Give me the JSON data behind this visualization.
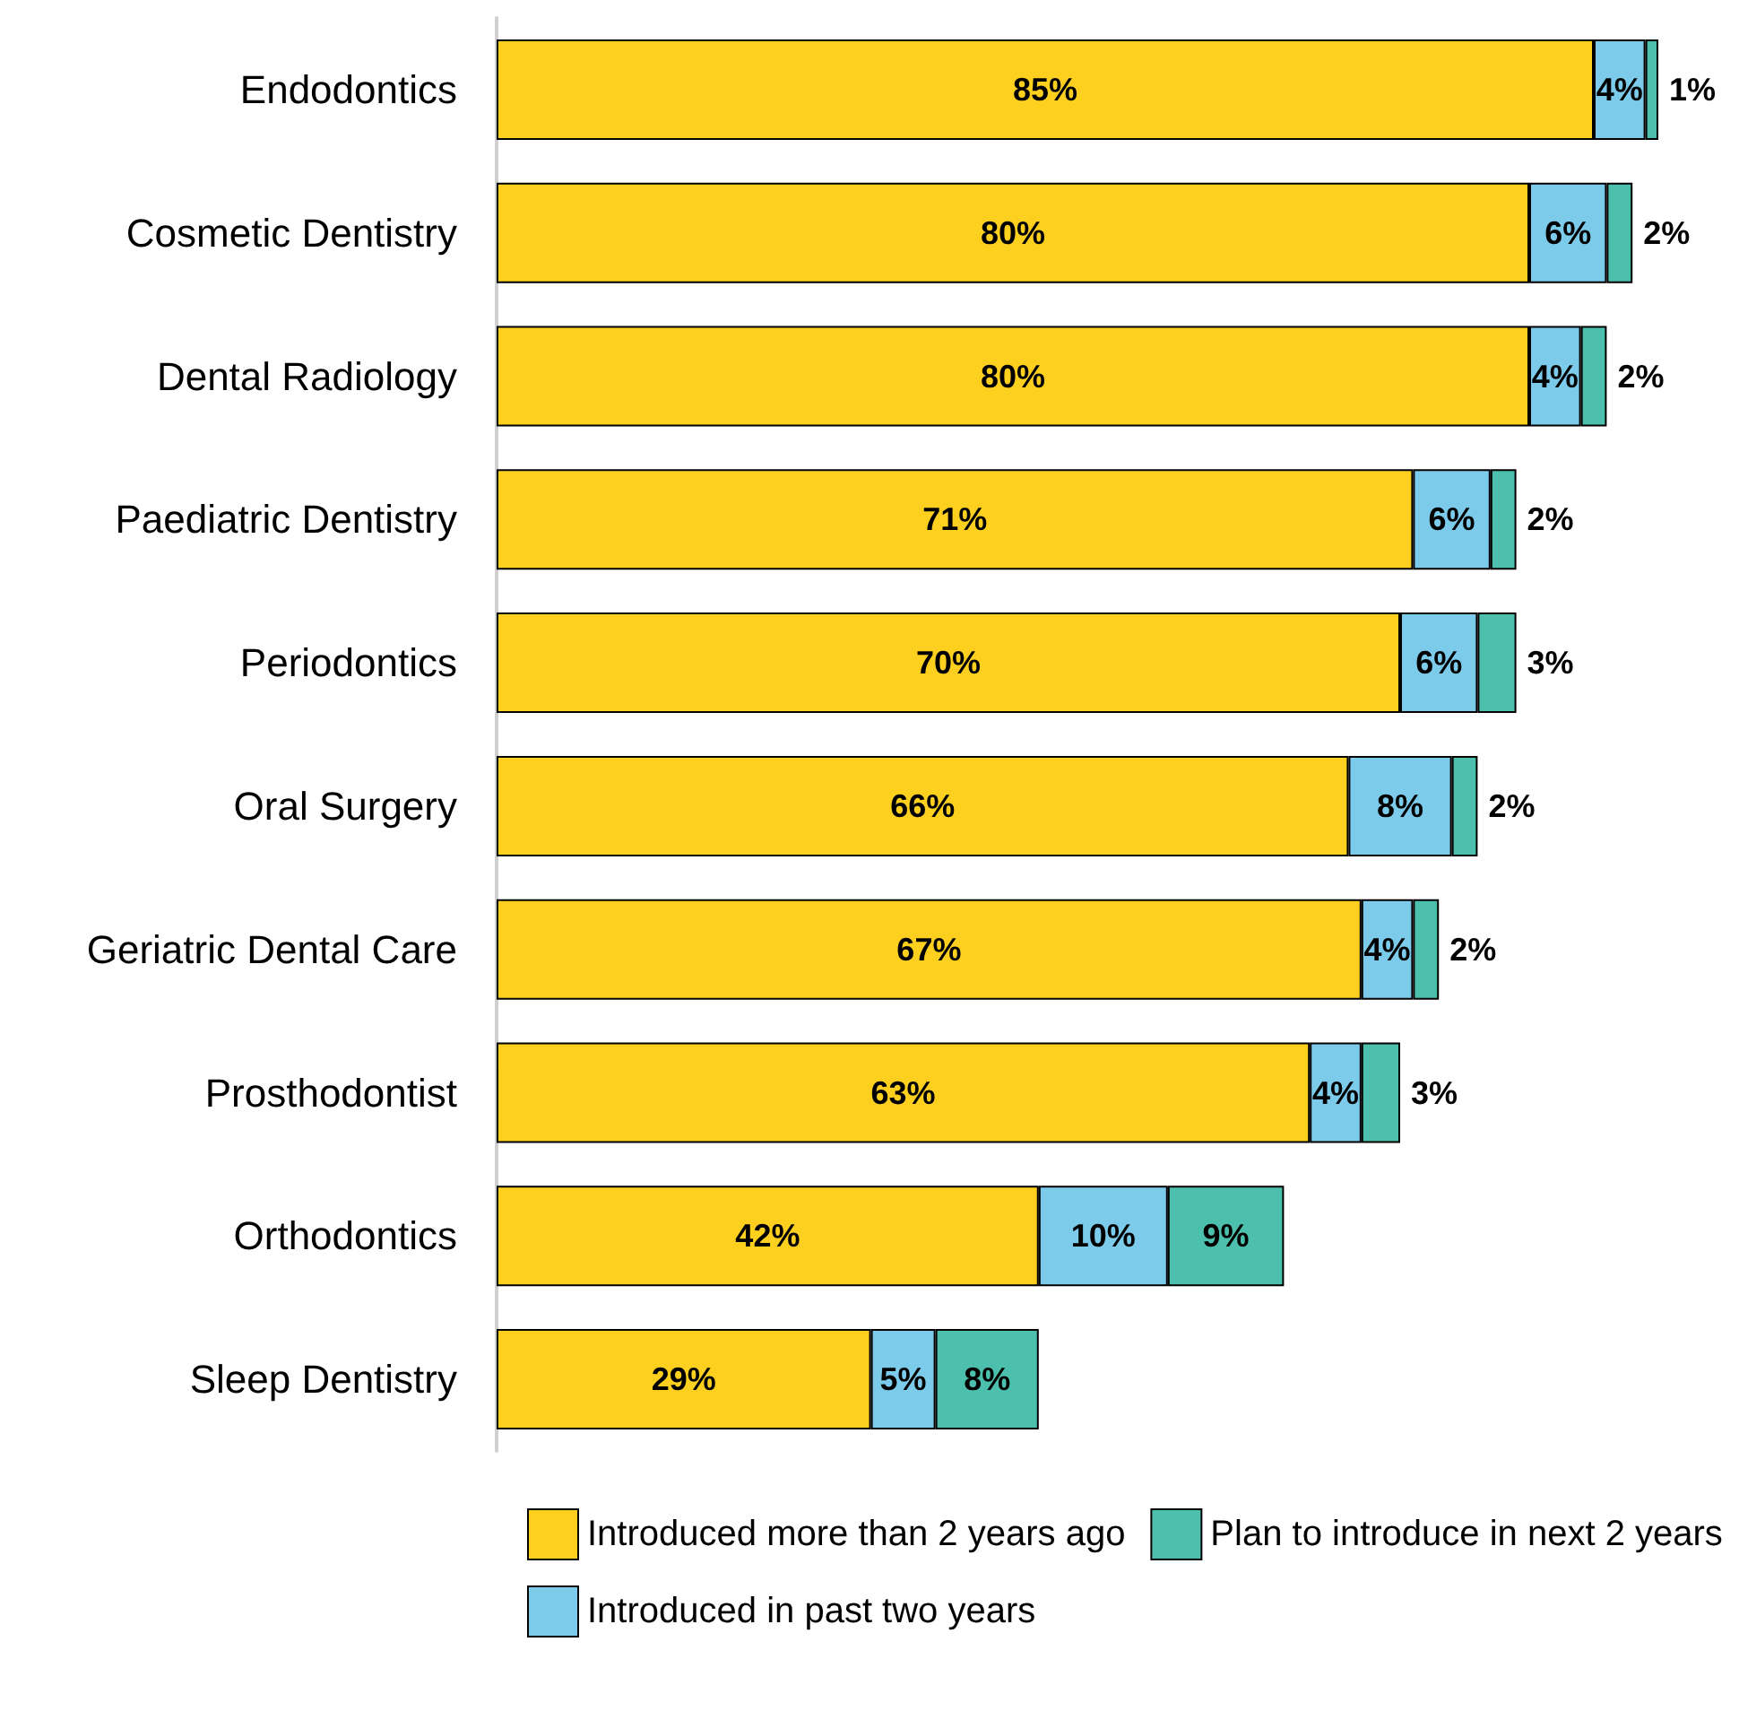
{
  "chart_data": {
    "type": "bar",
    "orientation": "horizontal",
    "stacked": true,
    "legend": "bottom",
    "categories": [
      "Endodontics",
      "Cosmetic Dentistry",
      "Dental Radiology",
      "Paediatric Dentistry",
      "Periodontics",
      "Oral Surgery",
      "Geriatric Dental Care",
      "Prosthodontist",
      "Orthodontics",
      "Sleep Dentistry"
    ],
    "series": [
      {
        "name": "Introduced more than 2 years ago",
        "color": "#fdd020",
        "values": [
          85,
          80,
          80,
          71,
          70,
          66,
          67,
          63,
          42,
          29
        ],
        "value_labels": [
          "85%",
          "80%",
          "80%",
          "71%",
          "70%",
          "66%",
          "67%",
          "63%",
          "42%",
          "29%"
        ]
      },
      {
        "name": "Introduced in past two years",
        "color": "#7ccbeb",
        "values": [
          4,
          6,
          4,
          6,
          6,
          8,
          4,
          4,
          10,
          5
        ],
        "value_labels": [
          "4%",
          "6%",
          "4%",
          "6%",
          "6%",
          "8%",
          "4%",
          "4%",
          "10%",
          "5%"
        ]
      },
      {
        "name": "Plan to introduce in next 2 years",
        "color": "#4dbfad",
        "values": [
          1,
          2,
          2,
          2,
          3,
          2,
          2,
          3,
          9,
          8
        ],
        "value_labels": [
          "1%",
          "2%",
          "2%",
          "2%",
          "3%",
          "2%",
          "2%",
          "3%",
          "9%",
          "8%"
        ]
      }
    ]
  }
}
